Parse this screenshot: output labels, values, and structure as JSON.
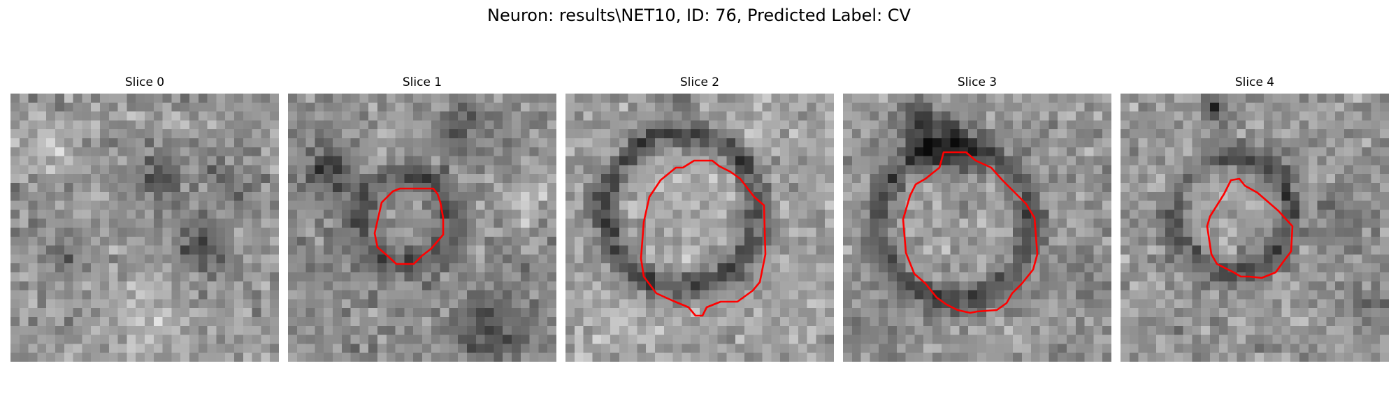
{
  "figure": {
    "title": "Neuron: results\\NET10, ID: 76, Predicted Label: CV"
  },
  "panels": [
    {
      "title": "Slice 0",
      "has_contour": false
    },
    {
      "title": "Slice 1",
      "has_contour": true
    },
    {
      "title": "Slice 2",
      "has_contour": true
    },
    {
      "title": "Slice 3",
      "has_contour": true
    },
    {
      "title": "Slice 4",
      "has_contour": true
    }
  ],
  "colors": {
    "contour": "#ff0000",
    "background": "#ffffff",
    "colormap": "grayscale"
  }
}
